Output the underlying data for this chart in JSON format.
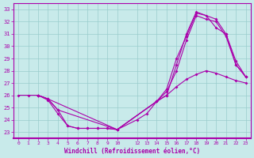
{
  "xlabel": "Windchill (Refroidissement éolien,°C)",
  "bg_color": "#c8eaea",
  "line_color": "#aa00aa",
  "grid_color": "#99cccc",
  "xlim": [
    -0.5,
    23.5
  ],
  "ylim": [
    22.5,
    33.5
  ],
  "yticks": [
    23,
    24,
    25,
    26,
    27,
    28,
    29,
    30,
    31,
    32,
    33
  ],
  "xticks": [
    0,
    1,
    2,
    3,
    4,
    5,
    6,
    7,
    8,
    9,
    10,
    12,
    13,
    14,
    15,
    16,
    17,
    18,
    19,
    20,
    21,
    22,
    23
  ],
  "line1_x": [
    0,
    1,
    2,
    3,
    4,
    5,
    6,
    7,
    8,
    9,
    10,
    14,
    15,
    16,
    17,
    18,
    19,
    20,
    21,
    22,
    23
  ],
  "line1_y": [
    26,
    26,
    26,
    25.7,
    24.8,
    23.5,
    23.3,
    23.3,
    23.3,
    23.3,
    23.2,
    25.5,
    26.3,
    28.0,
    30.5,
    32.5,
    32.2,
    32.0,
    30.8,
    28.5,
    27.5
  ],
  "line2_x": [
    2,
    3,
    4,
    10,
    14,
    15,
    16,
    17,
    18,
    19,
    20,
    21,
    22,
    23
  ],
  "line2_y": [
    26,
    25.7,
    24.8,
    23.2,
    25.5,
    26.5,
    29.0,
    30.8,
    32.7,
    32.5,
    31.5,
    31.0,
    28.5,
    27.5
  ],
  "line3_x": [
    2,
    3,
    4,
    5,
    6,
    7,
    8,
    9,
    10,
    12,
    13,
    14,
    15,
    16,
    17,
    18,
    19,
    20,
    21,
    22,
    23
  ],
  "line3_y": [
    26,
    25.6,
    24.5,
    23.5,
    23.3,
    23.3,
    23.3,
    23.3,
    23.2,
    24.0,
    24.5,
    25.5,
    26.0,
    26.7,
    27.3,
    27.7,
    28.0,
    27.8,
    27.5,
    27.2,
    27.0
  ],
  "line4_x": [
    2,
    3,
    10,
    14,
    15,
    16,
    17,
    18,
    20,
    21,
    22,
    23
  ],
  "line4_y": [
    26,
    25.7,
    23.2,
    25.5,
    26.0,
    28.5,
    31.0,
    32.8,
    32.2,
    31.0,
    28.8,
    27.5
  ]
}
